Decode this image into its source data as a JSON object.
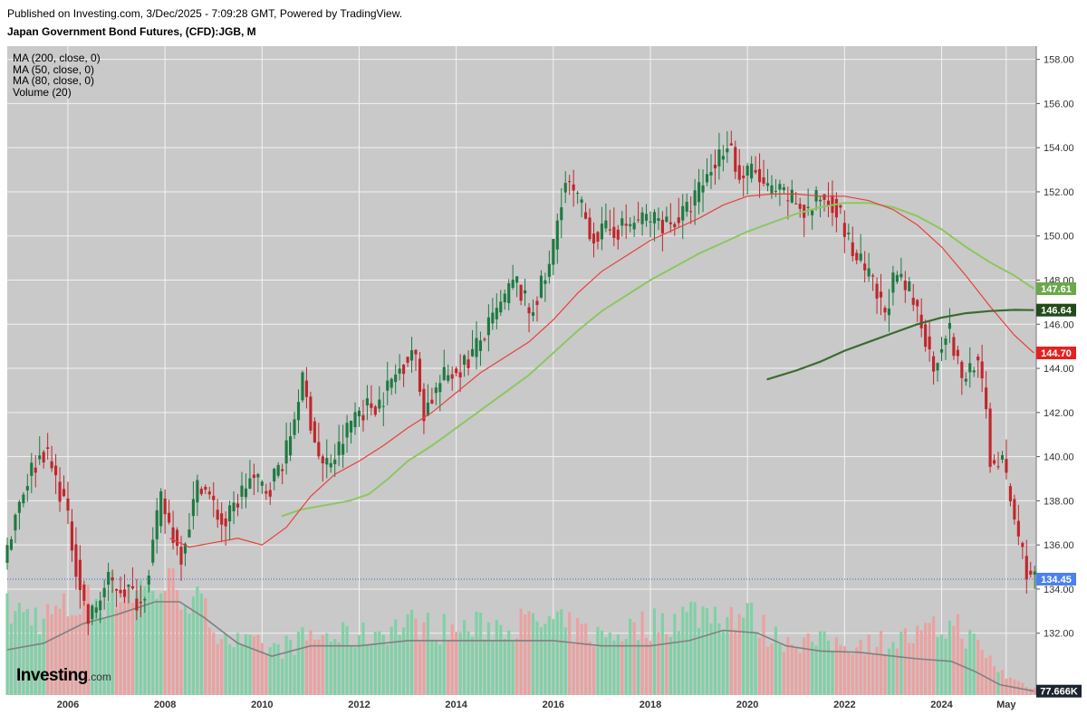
{
  "header": {
    "published": "Published on Investing.com, 3/Dec/2025 - 7:09:28 GMT, Powered by TradingView.",
    "instrument": "Japan Government Bond Futures, (CFD):JGB, M"
  },
  "legend": {
    "items": [
      "MA (200, close, 0)",
      "MA (50, close, 0)",
      "MA (80, close, 0)",
      "Volume (20)"
    ]
  },
  "logo": {
    "brand": "Investing",
    "suffix": ".com"
  },
  "colors": {
    "plot_bg": "#c9c9c9",
    "grid": "#f2f2f2",
    "candle_up": "#1d7a42",
    "candle_down": "#c0262b",
    "vol_up": "#7fd1a6",
    "vol_down": "#eba1a0",
    "ma_red": "#e8403a",
    "ma_light_green": "#8cc760",
    "ma_dark_green": "#3c6a30",
    "vol_ma": "#808080",
    "last_price_line": "#3a5fd8",
    "tag_last": "#4a80f0",
    "tag_red": "#e52020",
    "tag_light_green": "#6ba84a",
    "tag_dark_green": "#224a1a",
    "tag_volume": "#1c2430"
  },
  "chart_data": {
    "type": "candlestick",
    "interval": "monthly",
    "x_range": [
      2004.75,
      2025.95
    ],
    "x_ticks": [
      {
        "x": 2006,
        "label": "2006"
      },
      {
        "x": 2008,
        "label": "2008"
      },
      {
        "x": 2010,
        "label": "2010"
      },
      {
        "x": 2012,
        "label": "2012"
      },
      {
        "x": 2014,
        "label": "2014"
      },
      {
        "x": 2016,
        "label": "2016"
      },
      {
        "x": 2018,
        "label": "2018"
      },
      {
        "x": 2020,
        "label": "2020"
      },
      {
        "x": 2022,
        "label": "2022"
      },
      {
        "x": 2024,
        "label": "2024"
      },
      {
        "x": 2025.33,
        "label": "May"
      }
    ],
    "y_range": [
      129.2,
      158.6
    ],
    "y_ticks": [
      132,
      134,
      136,
      138,
      140,
      142,
      144,
      146,
      148,
      150,
      152,
      154,
      156,
      158
    ],
    "y_tick_labels": [
      "132.00",
      "134.00",
      "136.00",
      "138.00",
      "140.00",
      "142.00",
      "144.00",
      "146.00",
      "148.00",
      "150.00",
      "152.00",
      "154.00",
      "156.00",
      "158.00"
    ],
    "price_anchors": [
      [
        2004.75,
        135.0
      ],
      [
        2005.0,
        137.5
      ],
      [
        2005.3,
        139.3
      ],
      [
        2005.6,
        140.3
      ],
      [
        2006.0,
        138.0
      ],
      [
        2006.3,
        134.5
      ],
      [
        2006.5,
        132.5
      ],
      [
        2006.9,
        134.3
      ],
      [
        2007.3,
        134.0
      ],
      [
        2007.6,
        133.3
      ],
      [
        2008.0,
        138.0
      ],
      [
        2008.4,
        135.5
      ],
      [
        2008.8,
        139.0
      ],
      [
        2009.3,
        136.8
      ],
      [
        2009.8,
        139.0
      ],
      [
        2010.2,
        138.5
      ],
      [
        2010.6,
        140.3
      ],
      [
        2010.9,
        143.5
      ],
      [
        2011.3,
        139.5
      ],
      [
        2011.6,
        140.0
      ],
      [
        2012.0,
        142.0
      ],
      [
        2012.5,
        142.5
      ],
      [
        2013.2,
        145.0
      ],
      [
        2013.4,
        142.0
      ],
      [
        2013.8,
        143.5
      ],
      [
        2014.3,
        144.3
      ],
      [
        2014.8,
        146.0
      ],
      [
        2015.3,
        148.0
      ],
      [
        2015.6,
        146.5
      ],
      [
        2016.0,
        148.5
      ],
      [
        2016.3,
        152.5
      ],
      [
        2016.6,
        151.5
      ],
      [
        2016.9,
        150.0
      ],
      [
        2017.5,
        150.4
      ],
      [
        2018.0,
        150.8
      ],
      [
        2018.5,
        150.6
      ],
      [
        2018.8,
        151.0
      ],
      [
        2019.2,
        152.5
      ],
      [
        2019.7,
        154.5
      ],
      [
        2019.9,
        152.5
      ],
      [
        2020.2,
        153.0
      ],
      [
        2020.5,
        152.0
      ],
      [
        2021.0,
        151.7
      ],
      [
        2021.3,
        151.0
      ],
      [
        2021.6,
        151.8
      ],
      [
        2021.9,
        151.5
      ],
      [
        2022.2,
        149.5
      ],
      [
        2022.6,
        148.0
      ],
      [
        2022.9,
        146.5
      ],
      [
        2023.1,
        148.0
      ],
      [
        2023.4,
        147.5
      ],
      [
        2023.7,
        146.0
      ],
      [
        2023.9,
        144.0
      ],
      [
        2024.2,
        146.0
      ],
      [
        2024.5,
        143.5
      ],
      [
        2024.8,
        144.5
      ],
      [
        2025.0,
        142.0
      ],
      [
        2025.1,
        139.5
      ],
      [
        2025.3,
        140.0
      ],
      [
        2025.5,
        138.0
      ],
      [
        2025.7,
        136.0
      ],
      [
        2025.9,
        134.45
      ]
    ],
    "ma_red": [
      [
        2008.1,
        136.3
      ],
      [
        2008.5,
        135.9
      ],
      [
        2009.0,
        136.1
      ],
      [
        2009.5,
        136.3
      ],
      [
        2010.0,
        136.0
      ],
      [
        2010.5,
        136.8
      ],
      [
        2011.0,
        138.2
      ],
      [
        2011.5,
        139.2
      ],
      [
        2012.0,
        139.8
      ],
      [
        2012.5,
        140.5
      ],
      [
        2013.0,
        141.3
      ],
      [
        2013.5,
        142.0
      ],
      [
        2014.0,
        142.9
      ],
      [
        2014.5,
        143.8
      ],
      [
        2015.0,
        144.5
      ],
      [
        2015.5,
        145.2
      ],
      [
        2016.0,
        146.2
      ],
      [
        2016.5,
        147.4
      ],
      [
        2017.0,
        148.4
      ],
      [
        2017.5,
        149.1
      ],
      [
        2018.0,
        149.8
      ],
      [
        2018.5,
        150.3
      ],
      [
        2019.0,
        150.8
      ],
      [
        2019.5,
        151.4
      ],
      [
        2020.0,
        151.8
      ],
      [
        2020.5,
        151.9
      ],
      [
        2021.0,
        151.9
      ],
      [
        2021.5,
        151.8
      ],
      [
        2022.0,
        151.8
      ],
      [
        2022.5,
        151.6
      ],
      [
        2023.0,
        151.2
      ],
      [
        2023.5,
        150.5
      ],
      [
        2024.0,
        149.5
      ],
      [
        2024.5,
        148.2
      ],
      [
        2025.0,
        146.8
      ],
      [
        2025.5,
        145.5
      ],
      [
        2025.9,
        144.7
      ]
    ],
    "ma_light_green": [
      [
        2010.4,
        137.3
      ],
      [
        2010.8,
        137.6
      ],
      [
        2011.3,
        137.8
      ],
      [
        2011.8,
        138.0
      ],
      [
        2012.2,
        138.3
      ],
      [
        2012.6,
        139.0
      ],
      [
        2013.0,
        139.8
      ],
      [
        2013.5,
        140.5
      ],
      [
        2014.0,
        141.3
      ],
      [
        2014.5,
        142.1
      ],
      [
        2015.0,
        142.9
      ],
      [
        2015.5,
        143.7
      ],
      [
        2016.0,
        144.7
      ],
      [
        2016.5,
        145.7
      ],
      [
        2017.0,
        146.6
      ],
      [
        2017.5,
        147.3
      ],
      [
        2018.0,
        148.0
      ],
      [
        2018.5,
        148.6
      ],
      [
        2019.0,
        149.2
      ],
      [
        2019.5,
        149.7
      ],
      [
        2020.0,
        150.2
      ],
      [
        2020.5,
        150.6
      ],
      [
        2021.0,
        151.0
      ],
      [
        2021.5,
        151.3
      ],
      [
        2022.0,
        151.5
      ],
      [
        2022.5,
        151.5
      ],
      [
        2023.0,
        151.3
      ],
      [
        2023.5,
        150.9
      ],
      [
        2024.0,
        150.3
      ],
      [
        2024.5,
        149.5
      ],
      [
        2025.0,
        148.8
      ],
      [
        2025.5,
        148.2
      ],
      [
        2025.9,
        147.61
      ]
    ],
    "ma_dark_green": [
      [
        2020.4,
        143.5
      ],
      [
        2021.0,
        143.9
      ],
      [
        2021.5,
        144.3
      ],
      [
        2022.0,
        144.8
      ],
      [
        2022.5,
        145.2
      ],
      [
        2023.0,
        145.6
      ],
      [
        2023.5,
        146.0
      ],
      [
        2024.0,
        146.3
      ],
      [
        2024.5,
        146.5
      ],
      [
        2025.0,
        146.6
      ],
      [
        2025.5,
        146.65
      ],
      [
        2025.9,
        146.64
      ]
    ],
    "volume_anchors": [
      [
        2004.75,
        0.65
      ],
      [
        2005.5,
        0.6
      ],
      [
        2006.3,
        0.7
      ],
      [
        2007.0,
        0.8
      ],
      [
        2007.8,
        0.85
      ],
      [
        2008.3,
        0.85
      ],
      [
        2009.0,
        0.55
      ],
      [
        2009.5,
        0.4
      ],
      [
        2010.3,
        0.35
      ],
      [
        2011.0,
        0.45
      ],
      [
        2012.0,
        0.45
      ],
      [
        2013.0,
        0.55
      ],
      [
        2014.0,
        0.5
      ],
      [
        2015.0,
        0.55
      ],
      [
        2016.0,
        0.55
      ],
      [
        2017.0,
        0.45
      ],
      [
        2018.0,
        0.55
      ],
      [
        2019.0,
        0.65
      ],
      [
        2020.0,
        0.62
      ],
      [
        2020.5,
        0.45
      ],
      [
        2021.5,
        0.4
      ],
      [
        2022.5,
        0.4
      ],
      [
        2023.5,
        0.45
      ],
      [
        2024.3,
        0.55
      ],
      [
        2024.8,
        0.35
      ],
      [
        2025.3,
        0.15
      ],
      [
        2025.9,
        0.05
      ]
    ],
    "volume_ma": [
      [
        2004.75,
        0.35
      ],
      [
        2005.5,
        0.4
      ],
      [
        2006.3,
        0.55
      ],
      [
        2007.0,
        0.62
      ],
      [
        2007.8,
        0.72
      ],
      [
        2008.3,
        0.72
      ],
      [
        2008.8,
        0.6
      ],
      [
        2009.5,
        0.4
      ],
      [
        2010.2,
        0.3
      ],
      [
        2011.0,
        0.38
      ],
      [
        2012.0,
        0.38
      ],
      [
        2013.0,
        0.42
      ],
      [
        2014.0,
        0.42
      ],
      [
        2015.0,
        0.42
      ],
      [
        2016.0,
        0.42
      ],
      [
        2017.0,
        0.38
      ],
      [
        2018.0,
        0.38
      ],
      [
        2018.8,
        0.42
      ],
      [
        2019.5,
        0.5
      ],
      [
        2020.2,
        0.48
      ],
      [
        2020.8,
        0.38
      ],
      [
        2021.5,
        0.34
      ],
      [
        2022.3,
        0.33
      ],
      [
        2023.0,
        0.3
      ],
      [
        2023.5,
        0.28
      ],
      [
        2024.2,
        0.26
      ],
      [
        2024.7,
        0.18
      ],
      [
        2025.2,
        0.08
      ],
      [
        2025.9,
        0.03
      ]
    ],
    "last_price": 134.45,
    "tags": [
      {
        "label": "147.61",
        "value": 147.61,
        "color_key": "tag_light_green"
      },
      {
        "label": "146.64",
        "value": 146.64,
        "color_key": "tag_dark_green"
      },
      {
        "label": "144.70",
        "value": 144.7,
        "color_key": "tag_red"
      },
      {
        "label": "134.45",
        "value": 134.45,
        "color_key": "tag_last"
      }
    ],
    "volume_tag": {
      "label": "77.666K",
      "color_key": "tag_volume"
    }
  }
}
